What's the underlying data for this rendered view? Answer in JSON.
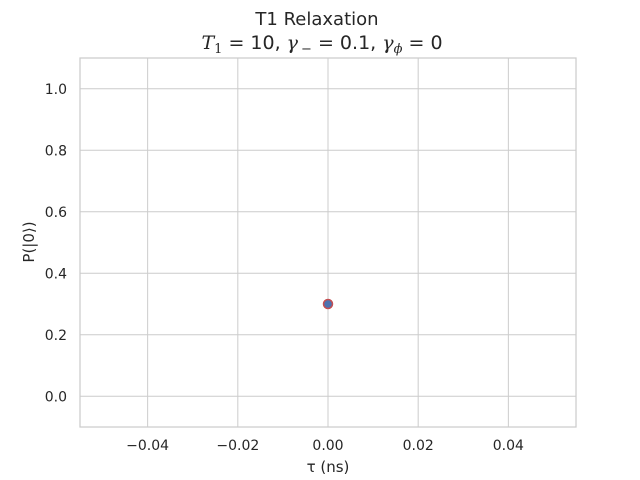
{
  "chart_data": {
    "type": "scatter",
    "title": "T1 Relaxation",
    "subtitle": "T1 = 10, γ− = 0.1, γφ = 0",
    "subtitle_parts": {
      "t1_symbol": "T",
      "t1_sub": "1",
      "t1_value": " = 10, ",
      "gamma_minus_symbol": "γ",
      "gamma_minus_sub": "−",
      "gamma_minus_value": " = 0.1, ",
      "gamma_phi_symbol": "γ",
      "gamma_phi_sub": "ϕ",
      "gamma_phi_value": " = 0"
    },
    "xlabel": "τ (ns)",
    "ylabel": "P(|0⟩)",
    "xlim": [
      -0.055,
      0.055
    ],
    "ylim": [
      -0.1,
      1.1
    ],
    "xticks": [
      -0.04,
      -0.02,
      0.0,
      0.02,
      0.04
    ],
    "xtick_labels": [
      "−0.04",
      "−0.02",
      "0.00",
      "0.02",
      "0.04"
    ],
    "yticks": [
      0.0,
      0.2,
      0.4,
      0.6,
      0.8,
      1.0
    ],
    "ytick_labels": [
      "0.0",
      "0.2",
      "0.4",
      "0.6",
      "0.8",
      "1.0"
    ],
    "grid": true,
    "points": [
      {
        "x": 0.0,
        "y": 0.3
      }
    ],
    "colors": {
      "marker_fill": "#4c72b0",
      "marker_edge": "#c44e52",
      "grid": "#cccccc",
      "spine": "#cccccc"
    }
  }
}
